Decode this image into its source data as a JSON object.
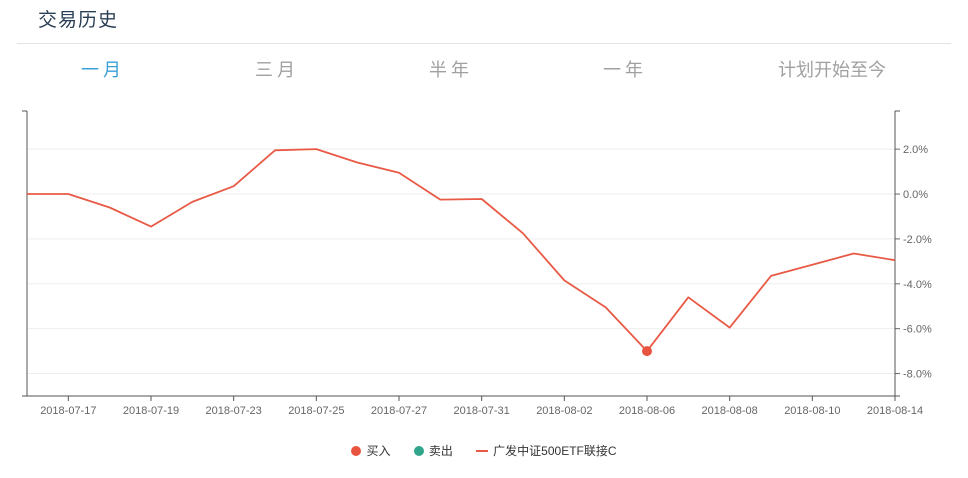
{
  "header": {
    "title": "交易历史"
  },
  "tabs": [
    {
      "label": "一月",
      "active": true
    },
    {
      "label": "三月",
      "active": false
    },
    {
      "label": "半年",
      "active": false
    },
    {
      "label": "一年",
      "active": false
    },
    {
      "label": "计划开始至今",
      "active": false
    }
  ],
  "colors": {
    "line": "#e85a46",
    "buy": "#e8543f",
    "sell": "#2fa58c",
    "active_tab": "#3aa0d6",
    "inactive_tab": "#a0a0a0"
  },
  "legend": [
    {
      "label": "买入",
      "kind": "dot",
      "color": "#e8543f"
    },
    {
      "label": "卖出",
      "kind": "dot",
      "color": "#2fa58c"
    },
    {
      "label": "广发中证500ETF联接C",
      "kind": "line",
      "color": "#e85a46"
    }
  ],
  "chart_data": {
    "type": "line",
    "x": [
      "2018-07-16",
      "2018-07-17",
      "2018-07-18",
      "2018-07-19",
      "2018-07-20",
      "2018-07-23",
      "2018-07-24",
      "2018-07-25",
      "2018-07-26",
      "2018-07-27",
      "2018-07-30",
      "2018-07-31",
      "2018-08-01",
      "2018-08-02",
      "2018-08-03",
      "2018-08-06",
      "2018-08-07",
      "2018-08-08",
      "2018-08-09",
      "2018-08-10",
      "2018-08-13",
      "2018-08-14"
    ],
    "series": [
      {
        "name": "广发中证500ETF联接C",
        "values": [
          0.0,
          0.0,
          -0.6,
          -1.45,
          -0.35,
          0.35,
          1.95,
          2.0,
          1.4,
          0.95,
          -0.25,
          -0.22,
          -1.75,
          -3.85,
          -5.05,
          -7.0,
          -4.6,
          -5.95,
          -3.65,
          -3.15,
          -2.65,
          -2.95
        ]
      }
    ],
    "buy_points": [
      {
        "x": "2018-08-06",
        "y": -7.0
      }
    ],
    "sell_points": [],
    "x_tick_labels": [
      "2018-07-17",
      "2018-07-19",
      "2018-07-23",
      "2018-07-25",
      "2018-07-27",
      "2018-07-31",
      "2018-08-02",
      "2018-08-06",
      "2018-08-08",
      "2018-08-10",
      "2018-08-14"
    ],
    "y_tick_labels": [
      "2.0%",
      "0.0%",
      "-2.0%",
      "-4.0%",
      "-6.0%",
      "-8.0%"
    ],
    "y_ticks": [
      2,
      0,
      -2,
      -4,
      -6,
      -8
    ],
    "ylim": [
      -9,
      3.7
    ],
    "grid": true,
    "legend_position": "bottom-center"
  }
}
